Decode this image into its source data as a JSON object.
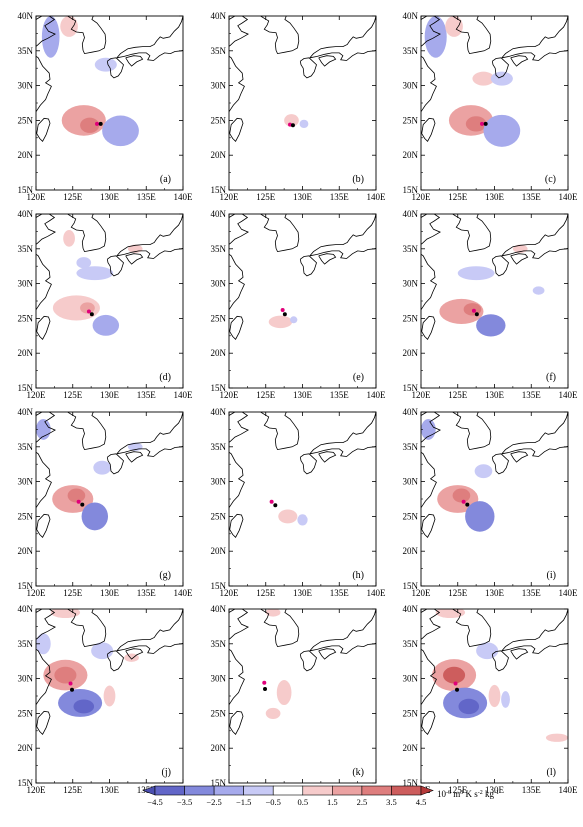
{
  "chart_data": {
    "type": "heatmap",
    "layout": {
      "rows": 4,
      "cols": 3
    },
    "x_axis": {
      "range": [
        120,
        140
      ],
      "ticks": [
        120,
        125,
        130,
        135,
        140
      ],
      "tick_labels": [
        "120E",
        "125E",
        "130E",
        "135E",
        "140E"
      ]
    },
    "y_axis": {
      "range": [
        15,
        40
      ],
      "ticks": [
        15,
        20,
        25,
        30,
        35,
        40
      ],
      "tick_labels": [
        "15N",
        "20N",
        "25N",
        "30N",
        "35N",
        "40N"
      ]
    },
    "panels": [
      {
        "label": "(a)",
        "markers": [
          {
            "lon": 128.3,
            "lat": 24.5,
            "c": "#e0007a"
          },
          {
            "lon": 128.8,
            "lat": 24.5,
            "c": "#000000"
          }
        ],
        "blobs": [
          {
            "lon": 126.5,
            "lat": 25,
            "rx": 3,
            "ry": 2.2,
            "v": 1.8
          },
          {
            "lon": 127.3,
            "lat": 24.3,
            "rx": 1.3,
            "ry": 1.1,
            "v": 2.6
          },
          {
            "lon": 131.5,
            "lat": 23.5,
            "rx": 2.5,
            "ry": 2.2,
            "v": -1.8
          },
          {
            "lon": 122,
            "lat": 37,
            "rx": 1.2,
            "ry": 3,
            "v": -1.5
          },
          {
            "lon": 124.5,
            "lat": 38.5,
            "rx": 1.2,
            "ry": 1.5,
            "v": 1.2
          },
          {
            "lon": 129.5,
            "lat": 33,
            "rx": 1.5,
            "ry": 1,
            "v": -1
          }
        ]
      },
      {
        "label": "(b)",
        "markers": [
          {
            "lon": 128.3,
            "lat": 24.4,
            "c": "#e0007a"
          },
          {
            "lon": 128.7,
            "lat": 24.3,
            "c": "#000000"
          }
        ],
        "blobs": [
          {
            "lon": 128.5,
            "lat": 25,
            "rx": 1,
            "ry": 0.9,
            "v": 1.3
          },
          {
            "lon": 130.2,
            "lat": 24.5,
            "rx": 0.6,
            "ry": 0.6,
            "v": -1
          }
        ]
      },
      {
        "label": "(c)",
        "markers": [
          {
            "lon": 128.3,
            "lat": 24.5,
            "c": "#e0007a"
          },
          {
            "lon": 128.8,
            "lat": 24.5,
            "c": "#000000"
          }
        ],
        "blobs": [
          {
            "lon": 126.8,
            "lat": 25,
            "rx": 3,
            "ry": 2.2,
            "v": 2.2
          },
          {
            "lon": 127.5,
            "lat": 24.5,
            "rx": 1.4,
            "ry": 1.1,
            "v": 3.2
          },
          {
            "lon": 131,
            "lat": 23.5,
            "rx": 2.5,
            "ry": 2.3,
            "v": -2
          },
          {
            "lon": 122,
            "lat": 37,
            "rx": 1.5,
            "ry": 3,
            "v": -2
          },
          {
            "lon": 124.5,
            "lat": 38.5,
            "rx": 1.2,
            "ry": 1.5,
            "v": 1.5
          },
          {
            "lon": 128.5,
            "lat": 31,
            "rx": 1.5,
            "ry": 1,
            "v": 1
          },
          {
            "lon": 131,
            "lat": 31,
            "rx": 1.5,
            "ry": 1,
            "v": -1
          }
        ]
      },
      {
        "label": "(d)",
        "markers": [
          {
            "lon": 127.2,
            "lat": 26,
            "c": "#e0007a"
          },
          {
            "lon": 127.6,
            "lat": 25.6,
            "c": "#000000"
          }
        ],
        "blobs": [
          {
            "lon": 125.5,
            "lat": 26.5,
            "rx": 3.2,
            "ry": 1.8,
            "v": 1.5
          },
          {
            "lon": 127,
            "lat": 26.5,
            "rx": 1,
            "ry": 0.8,
            "v": 2.5
          },
          {
            "lon": 129.5,
            "lat": 24,
            "rx": 1.8,
            "ry": 1.5,
            "v": -1.8
          },
          {
            "lon": 128,
            "lat": 31.5,
            "rx": 2.5,
            "ry": 1,
            "v": -1
          },
          {
            "lon": 124.5,
            "lat": 36.5,
            "rx": 0.8,
            "ry": 1.2,
            "v": 1
          },
          {
            "lon": 126.5,
            "lat": 33,
            "rx": 1,
            "ry": 0.8,
            "v": -1
          },
          {
            "lon": 133.5,
            "lat": 35,
            "rx": 1,
            "ry": 0.6,
            "v": 1
          }
        ]
      },
      {
        "label": "(e)",
        "markers": [
          {
            "lon": 127.3,
            "lat": 26.2,
            "c": "#e0007a"
          },
          {
            "lon": 127.6,
            "lat": 25.6,
            "c": "#000000"
          }
        ],
        "blobs": [
          {
            "lon": 127,
            "lat": 24.5,
            "rx": 1.6,
            "ry": 0.9,
            "v": 1.5
          },
          {
            "lon": 128.8,
            "lat": 24.8,
            "rx": 0.5,
            "ry": 0.5,
            "v": -1
          }
        ]
      },
      {
        "label": "(f)",
        "markers": [
          {
            "lon": 127.2,
            "lat": 26.1,
            "c": "#e0007a"
          },
          {
            "lon": 127.6,
            "lat": 25.6,
            "c": "#000000"
          }
        ],
        "blobs": [
          {
            "lon": 125.5,
            "lat": 26,
            "rx": 3,
            "ry": 1.8,
            "v": 1.8
          },
          {
            "lon": 127,
            "lat": 26.3,
            "rx": 1.2,
            "ry": 0.9,
            "v": 3
          },
          {
            "lon": 129.5,
            "lat": 24,
            "rx": 2,
            "ry": 1.6,
            "v": -2.8
          },
          {
            "lon": 127.5,
            "lat": 31.5,
            "rx": 2.5,
            "ry": 1,
            "v": -1
          },
          {
            "lon": 133.5,
            "lat": 35,
            "rx": 1,
            "ry": 0.6,
            "v": 1
          },
          {
            "lon": 136,
            "lat": 29,
            "rx": 0.8,
            "ry": 0.6,
            "v": -1
          }
        ]
      },
      {
        "label": "(g)",
        "markers": [
          {
            "lon": 125.8,
            "lat": 27.1,
            "c": "#e0007a"
          },
          {
            "lon": 126.3,
            "lat": 26.7,
            "c": "#000000"
          }
        ],
        "blobs": [
          {
            "lon": 125,
            "lat": 27.5,
            "rx": 2.8,
            "ry": 2,
            "v": 1.8
          },
          {
            "lon": 125.5,
            "lat": 28,
            "rx": 1.2,
            "ry": 1,
            "v": 2.8
          },
          {
            "lon": 128,
            "lat": 25,
            "rx": 1.8,
            "ry": 2,
            "v": -2.5
          },
          {
            "lon": 129,
            "lat": 32,
            "rx": 1.2,
            "ry": 1,
            "v": -1.2
          },
          {
            "lon": 121,
            "lat": 37.5,
            "rx": 1,
            "ry": 1.5,
            "v": -1.5
          },
          {
            "lon": 133.5,
            "lat": 35,
            "rx": 1,
            "ry": 0.6,
            "v": -1
          }
        ]
      },
      {
        "label": "(h)",
        "markers": [
          {
            "lon": 125.8,
            "lat": 27.1,
            "c": "#e0007a"
          },
          {
            "lon": 126.3,
            "lat": 26.6,
            "c": "#000000"
          }
        ],
        "blobs": [
          {
            "lon": 128,
            "lat": 25,
            "rx": 1.3,
            "ry": 1,
            "v": 1.3
          },
          {
            "lon": 130,
            "lat": 24.5,
            "rx": 0.7,
            "ry": 0.8,
            "v": -1
          }
        ]
      },
      {
        "label": "(i)",
        "markers": [
          {
            "lon": 125.8,
            "lat": 27.1,
            "c": "#e0007a"
          },
          {
            "lon": 126.3,
            "lat": 26.7,
            "c": "#000000"
          }
        ],
        "blobs": [
          {
            "lon": 125,
            "lat": 27.5,
            "rx": 2.8,
            "ry": 2,
            "v": 1.8
          },
          {
            "lon": 125.5,
            "lat": 28,
            "rx": 1.2,
            "ry": 1,
            "v": 2.8
          },
          {
            "lon": 128,
            "lat": 25,
            "rx": 2,
            "ry": 2.2,
            "v": -2.8
          },
          {
            "lon": 128.5,
            "lat": 31.5,
            "rx": 1.2,
            "ry": 1,
            "v": -1.2
          },
          {
            "lon": 121,
            "lat": 37.5,
            "rx": 1,
            "ry": 1.5,
            "v": -1.5
          }
        ]
      },
      {
        "label": "(j)",
        "markers": [
          {
            "lon": 124.7,
            "lat": 29.3,
            "c": "#e0007a"
          },
          {
            "lon": 124.9,
            "lat": 28.4,
            "c": "#000000"
          }
        ],
        "blobs": [
          {
            "lon": 124,
            "lat": 30.5,
            "rx": 3,
            "ry": 2.2,
            "v": 2.2
          },
          {
            "lon": 124,
            "lat": 30.5,
            "rx": 1.5,
            "ry": 1.2,
            "v": 3.5
          },
          {
            "lon": 126,
            "lat": 26.5,
            "rx": 3,
            "ry": 2,
            "v": -2.5
          },
          {
            "lon": 126.5,
            "lat": 26,
            "rx": 1.4,
            "ry": 1,
            "v": -3.8
          },
          {
            "lon": 130,
            "lat": 27.5,
            "rx": 0.8,
            "ry": 1.5,
            "v": 1.2
          },
          {
            "lon": 129,
            "lat": 34,
            "rx": 1.5,
            "ry": 1.2,
            "v": -1.2
          },
          {
            "lon": 121,
            "lat": 35,
            "rx": 1,
            "ry": 1.5,
            "v": -1.2
          },
          {
            "lon": 124,
            "lat": 39.5,
            "rx": 2,
            "ry": 0.8,
            "v": 1
          },
          {
            "lon": 133,
            "lat": 33,
            "rx": 1,
            "ry": 0.6,
            "v": 1
          }
        ]
      },
      {
        "label": "(k)",
        "markers": [
          {
            "lon": 124.8,
            "lat": 29.4,
            "c": "#e0007a"
          },
          {
            "lon": 124.9,
            "lat": 28.5,
            "c": "#000000"
          }
        ],
        "blobs": [
          {
            "lon": 127.5,
            "lat": 28,
            "rx": 1,
            "ry": 1.8,
            "v": 1.4
          },
          {
            "lon": 126,
            "lat": 25,
            "rx": 1,
            "ry": 0.8,
            "v": 1.2
          },
          {
            "lon": 126,
            "lat": 39.5,
            "rx": 1,
            "ry": 0.6,
            "v": 1
          }
        ]
      },
      {
        "label": "(l)",
        "markers": [
          {
            "lon": 124.7,
            "lat": 29.3,
            "c": "#e0007a"
          },
          {
            "lon": 124.9,
            "lat": 28.4,
            "c": "#000000"
          }
        ],
        "blobs": [
          {
            "lon": 124.5,
            "lat": 30.5,
            "rx": 3,
            "ry": 2.3,
            "v": 2.5
          },
          {
            "lon": 124.5,
            "lat": 30.5,
            "rx": 1.5,
            "ry": 1.2,
            "v": 3.8
          },
          {
            "lon": 126,
            "lat": 26.5,
            "rx": 3,
            "ry": 2.2,
            "v": -2.5
          },
          {
            "lon": 126.5,
            "lat": 26,
            "rx": 1.4,
            "ry": 1.1,
            "v": -3.8
          },
          {
            "lon": 130,
            "lat": 27.5,
            "rx": 0.8,
            "ry": 1.6,
            "v": 1.4
          },
          {
            "lon": 131.5,
            "lat": 27,
            "rx": 0.6,
            "ry": 1.2,
            "v": -1.2
          },
          {
            "lon": 129,
            "lat": 34,
            "rx": 1.5,
            "ry": 1.2,
            "v": -1.2
          },
          {
            "lon": 124,
            "lat": 39.5,
            "rx": 2,
            "ry": 0.8,
            "v": 1.2
          },
          {
            "lon": 138.5,
            "lat": 21.5,
            "rx": 1.5,
            "ry": 0.6,
            "v": 1
          }
        ]
      }
    ],
    "colorbar": {
      "levels": [
        -4.5,
        -3.5,
        -2.5,
        -1.5,
        -0.5,
        0.5,
        1.5,
        2.5,
        3.5,
        4.5
      ],
      "tick_labels": [
        "-4.5",
        "-3.5",
        "-2.5",
        "-1.5",
        "-0.5",
        "0.5",
        "1.5",
        "2.5",
        "3.5",
        "4.5"
      ],
      "colors": [
        "#4b4fb0",
        "#6266c8",
        "#8389dc",
        "#a6aaec",
        "#c8caf6",
        "#ffffff",
        "#f6cbcb",
        "#eba2a2",
        "#de7e7e",
        "#cd5d5d",
        "#b53a3a"
      ],
      "unit_prefix": "10",
      "unit_exp": "-6",
      "unit_mid": " m",
      "unit_exp2": "3",
      "unit_mid2": " K s",
      "unit_exp3": "-2",
      "unit_mid3": " kg",
      "unit_exp4": "-1"
    }
  }
}
